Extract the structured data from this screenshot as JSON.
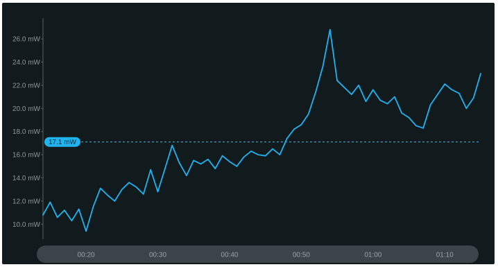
{
  "colors": {
    "background": "#111b1e",
    "series": "#1fb3f0",
    "reference": "#1fb3f0",
    "axis": "#5a6266",
    "timeline": "#3b4448"
  },
  "chart_data": {
    "type": "line",
    "unit": "mW",
    "ylim": [
      8.7,
      27.8
    ],
    "xlim": [
      "00:14",
      "01:15"
    ],
    "y_ticks": [
      "10.0 mW",
      "12.0 mW",
      "14.0 mW",
      "16.0 mW",
      "18.0 mW",
      "20.0 mW",
      "22.0 mW",
      "24.0 mW",
      "26.0 mW"
    ],
    "x_ticks": [
      "00:20",
      "00:30",
      "00:40",
      "00:50",
      "01:00",
      "01:10"
    ],
    "grid": false,
    "reference_line": {
      "value": 17.1,
      "label": "17.1 mW"
    },
    "series": [
      {
        "x": [
          "00:14",
          "00:15",
          "00:16",
          "00:17",
          "00:18",
          "00:19",
          "00:20",
          "00:21",
          "00:22",
          "00:23",
          "00:24",
          "00:25",
          "00:26",
          "00:27",
          "00:28",
          "00:29",
          "00:30",
          "00:31",
          "00:32",
          "00:33",
          "00:34",
          "00:35",
          "00:36",
          "00:37",
          "00:38",
          "00:39",
          "00:40",
          "00:41",
          "00:42",
          "00:43",
          "00:44",
          "00:45",
          "00:46",
          "00:47",
          "00:48",
          "00:49",
          "00:50",
          "00:51",
          "00:52",
          "00:53",
          "00:54",
          "00:55",
          "00:56",
          "00:57",
          "00:58",
          "00:59",
          "01:00",
          "01:01",
          "01:02",
          "01:03",
          "01:04",
          "01:05",
          "01:06",
          "01:07",
          "01:08",
          "01:09",
          "01:10",
          "01:11",
          "01:12",
          "01:13",
          "01:14",
          "01:15"
        ],
        "values": [
          10.8,
          11.9,
          10.6,
          11.2,
          10.3,
          11.3,
          9.4,
          11.5,
          13.1,
          12.5,
          12.0,
          13.0,
          13.6,
          13.2,
          12.6,
          14.7,
          12.8,
          14.8,
          16.8,
          15.3,
          14.2,
          15.5,
          15.2,
          15.6,
          14.8,
          15.9,
          15.4,
          15.0,
          15.8,
          16.3,
          16.0,
          15.9,
          16.5,
          16.0,
          17.4,
          18.2,
          18.6,
          19.5,
          21.4,
          23.6,
          26.8,
          22.4,
          21.8,
          21.2,
          22.0,
          20.6,
          21.6,
          20.7,
          20.4,
          21.0,
          19.6,
          19.2,
          18.5,
          18.3,
          20.3,
          21.2,
          22.1,
          21.6,
          21.3,
          20.0,
          20.9,
          23.0
        ]
      }
    ]
  }
}
